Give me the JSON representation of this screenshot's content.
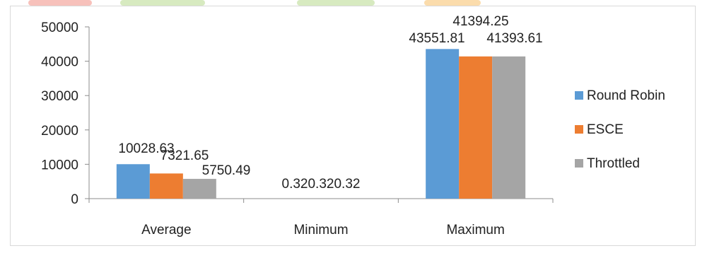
{
  "chart_data": {
    "type": "bar",
    "title": "",
    "xlabel": "",
    "ylabel": "",
    "categories": [
      "Average",
      "Minimum",
      "Maximum"
    ],
    "series": [
      {
        "name": "Round Robin",
        "color": "#5b9bd5",
        "values": [
          10028.63,
          0.32,
          43551.81
        ],
        "labels": [
          "10028.63",
          "",
          "43551.81"
        ]
      },
      {
        "name": "ESCE",
        "color": "#ed7d31",
        "values": [
          7321.65,
          0.32,
          41394.25
        ],
        "labels": [
          "7321.65",
          "",
          "41394.25"
        ]
      },
      {
        "name": "Throttled",
        "color": "#a5a5a5",
        "values": [
          5750.49,
          0.32,
          41393.61
        ],
        "labels": [
          "5750.49",
          "",
          "41393.61"
        ]
      }
    ],
    "combined_labels": [
      {
        "category_index": 1,
        "text": "0.320.320.32"
      }
    ],
    "ylim": [
      0,
      50000
    ],
    "yticks": [
      0,
      10000,
      20000,
      30000,
      40000,
      50000
    ],
    "ytick_labels": [
      "0",
      "10000",
      "20000",
      "30000",
      "40000",
      "50000"
    ],
    "grid": false,
    "legend": "right"
  }
}
